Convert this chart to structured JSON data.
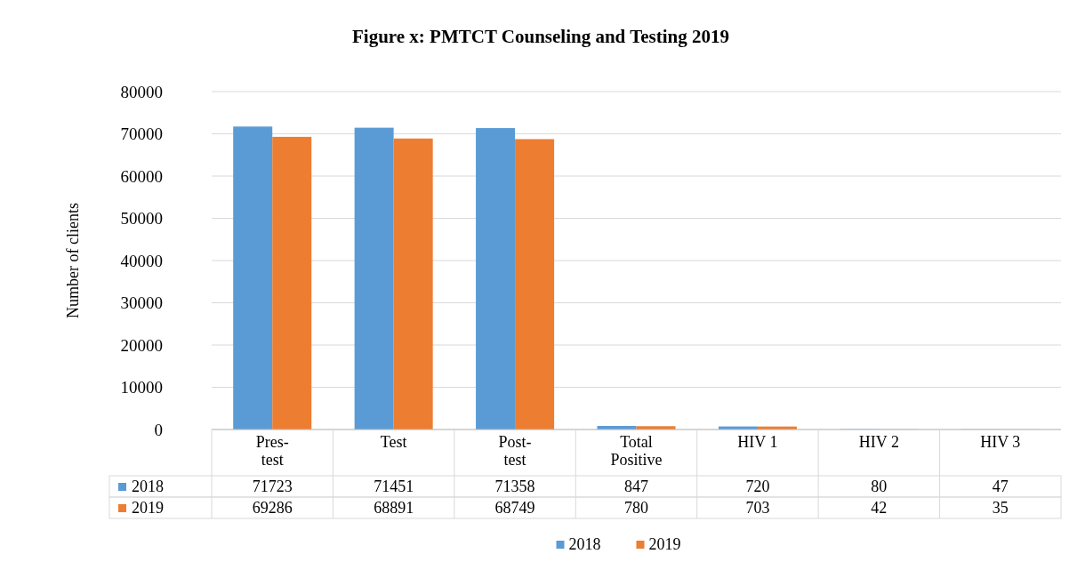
{
  "chart_data": {
    "type": "bar",
    "title": "Figure x: PMTCT Counseling and Testing 2019",
    "ylabel": "Number of clients",
    "categories": [
      "Pres-test",
      "Test",
      "Post-test",
      "Total Positive",
      "HIV 1",
      "HIV 2",
      "HIV 3"
    ],
    "series": [
      {
        "name": "2018",
        "color": "#5b9bd5",
        "values": [
          71723,
          71451,
          71358,
          847,
          720,
          80,
          47
        ]
      },
      {
        "name": "2019",
        "color": "#ed7d31",
        "values": [
          69286,
          68891,
          68749,
          780,
          703,
          42,
          35
        ]
      }
    ],
    "ylim": [
      0,
      80000
    ],
    "yticks": [
      0,
      10000,
      20000,
      30000,
      40000,
      50000,
      60000,
      70000,
      80000
    ],
    "grid": "y",
    "legend": "bottom",
    "data_labels": true
  }
}
